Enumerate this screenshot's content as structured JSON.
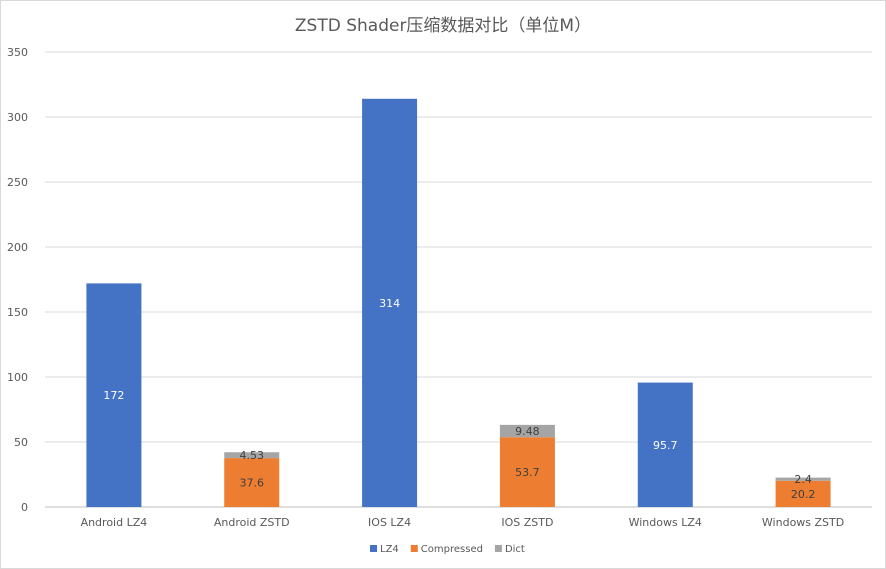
{
  "chart_data": {
    "type": "bar",
    "stacked": true,
    "title": "ZSTD Shader压缩数据对比（单位M）",
    "categories": [
      "Android LZ4",
      "Android ZSTD",
      "IOS LZ4",
      "IOS ZSTD",
      "Windows LZ4",
      "Windows ZSTD"
    ],
    "series": [
      {
        "name": "LZ4",
        "color": "#4472c4",
        "values": [
          172,
          null,
          314,
          null,
          95.7,
          null
        ],
        "labels": [
          "172",
          "",
          "314",
          "",
          "95.7",
          ""
        ]
      },
      {
        "name": "Compressed",
        "color": "#ed7d31",
        "values": [
          null,
          37.6,
          null,
          53.7,
          null,
          20.2
        ],
        "labels": [
          "",
          "37.6",
          "",
          "53.7",
          "",
          "20.2"
        ]
      },
      {
        "name": "Dict",
        "color": "#a5a5a5",
        "values": [
          null,
          4.53,
          null,
          9.48,
          null,
          2.4
        ],
        "labels": [
          "",
          "4.53",
          "",
          "9.48",
          "",
          "2.4"
        ]
      }
    ],
    "ylim": [
      0,
      350
    ],
    "yticks": [
      0,
      50,
      100,
      150,
      200,
      250,
      300,
      350
    ],
    "ytick_labels": [
      "0",
      "50",
      "100",
      "150",
      "200",
      "250",
      "300",
      "350"
    ],
    "grid": true,
    "legend_position": "bottom"
  }
}
